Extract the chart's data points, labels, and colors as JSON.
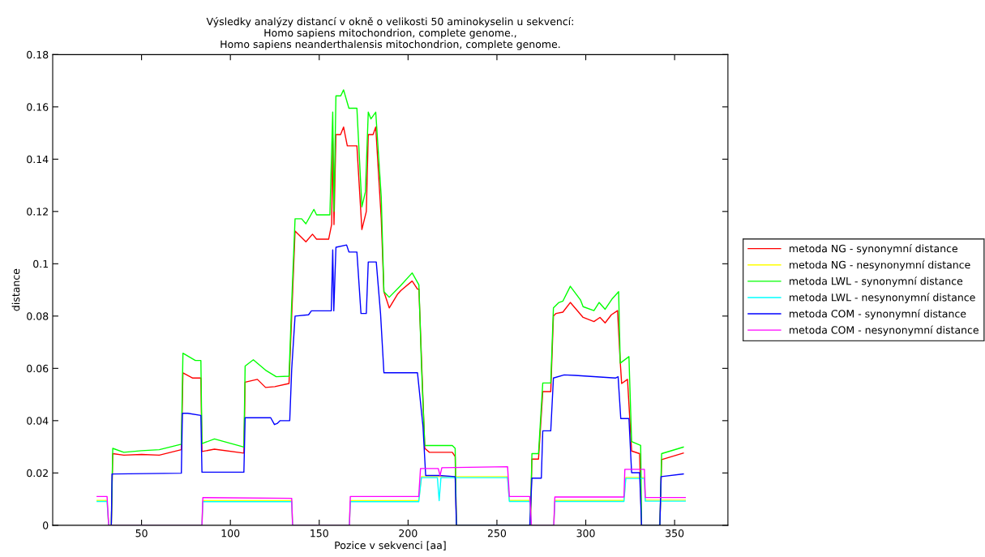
{
  "chart_data": {
    "type": "line",
    "title": "Výsledky analýzy distancí v okně o velikosti 50 aminokyselin u sekvencí:\nHomo sapiens mitochondrion, complete genome.,\nHomo sapiens neanderthalensis mitochondrion, complete genome.",
    "xlabel": "Pozice v sekvenci [aa]",
    "ylabel": "distance",
    "xlim": [
      0,
      380
    ],
    "ylim": [
      0,
      0.18
    ],
    "xticks": [
      50,
      100,
      150,
      200,
      250,
      300,
      350
    ],
    "yticks": [
      0,
      0.02,
      0.04,
      0.06,
      0.08,
      0.1,
      0.12,
      0.14,
      0.16,
      0.18
    ],
    "grid": false,
    "legend": "right",
    "marker": "none",
    "line_style": "solid",
    "series": [
      {
        "name": "metoda NG - synonymní distance",
        "color": "#ff0000",
        "x": [
          33,
          33.8,
          40,
          50,
          60,
          72.4,
          73.3,
          78.8,
          83.4,
          84,
          91,
          107.6,
          108.3,
          115.2,
          119.8,
          125,
          133,
          134.5,
          136.4,
          142.5,
          146.2,
          148.5,
          155.3,
          157,
          157.6,
          158.3,
          159.4,
          162,
          163.7,
          165.8,
          171.2,
          174,
          176.5,
          177.6,
          180.3,
          181.8,
          184.9,
          186.4,
          189.4,
          194,
          196,
          202.3,
          205.3,
          206.1,
          209.4,
          212,
          224.9,
          226.5,
          227.2,
          268.8,
          269.7,
          273.4,
          275.8,
          280.3,
          281.8,
          283.3,
          287.1,
          291.3,
          298.5,
          304.6,
          308,
          310.9,
          314.4,
          317.9,
          319.4,
          320.2,
          323.5,
          325.8,
          330.3,
          331.4,
          341.7,
          342.7,
          354.9
        ],
        "values": [
          0,
          0.0274,
          0.0268,
          0.0271,
          0.0268,
          0.0289,
          0.0583,
          0.0563,
          0.0563,
          0.0282,
          0.0291,
          0.0276,
          0.0547,
          0.0558,
          0.0527,
          0.053,
          0.0542,
          0.08,
          0.1125,
          0.1084,
          0.1113,
          0.1094,
          0.1094,
          0.1151,
          0.1482,
          0.115,
          0.1494,
          0.1494,
          0.1523,
          0.1451,
          0.1451,
          0.1131,
          0.12,
          0.1494,
          0.1494,
          0.1523,
          0.1172,
          0.0893,
          0.0831,
          0.0883,
          0.0898,
          0.0934,
          0.0903,
          0.0903,
          0.0294,
          0.0279,
          0.0279,
          0.0263,
          0,
          0,
          0.0253,
          0.0253,
          0.0511,
          0.0511,
          0.08,
          0.081,
          0.0815,
          0.0852,
          0.0795,
          0.0779,
          0.0795,
          0.0774,
          0.0805,
          0.0821,
          0.0625,
          0.0542,
          0.0558,
          0.0284,
          0.0274,
          0,
          0,
          0.0251,
          0.0276
        ]
      },
      {
        "name": "metoda NG - nesynonymní distance",
        "color": "#ffff00",
        "x": [
          25,
          30.6,
          31.5,
          84,
          84.5,
          134.5,
          135,
          167,
          167.5,
          206,
          207.5,
          256,
          257,
          268.5,
          269.4,
          282,
          282.6,
          321.5,
          322.5,
          333,
          333.5,
          356
        ],
        "values": [
          0.0095,
          0.0095,
          0,
          0,
          0.0094,
          0.0094,
          0,
          0,
          0.0094,
          0.0094,
          0.0186,
          0.0186,
          0.0095,
          0.0095,
          0,
          0,
          0.0095,
          0.0095,
          0.0183,
          0.0183,
          0.0096,
          0.0096
        ]
      },
      {
        "name": "metoda LWL - synonymní distance",
        "color": "#00ff00",
        "x": [
          33,
          33.8,
          40,
          50,
          60,
          72.4,
          73.3,
          80.3,
          83.4,
          84,
          91,
          107.6,
          108.3,
          112.9,
          119.8,
          125.8,
          133,
          134.5,
          136.4,
          140.1,
          142.5,
          147,
          148.5,
          156,
          157.6,
          158.3,
          159.4,
          162.1,
          163.7,
          166.7,
          171.2,
          174,
          176,
          177.6,
          179.1,
          181.8,
          184.9,
          186.4,
          189.4,
          195.5,
          202.3,
          206.1,
          207.6,
          209.4,
          224.9,
          226.5,
          227.2,
          268.8,
          269.7,
          273.4,
          275.8,
          280.3,
          281.8,
          284.9,
          287.1,
          291.3,
          297,
          298.5,
          304.6,
          307.5,
          310.9,
          315,
          318.5,
          319.4,
          324.3,
          325.8,
          330.9,
          331.4,
          341.7,
          342.7,
          354.9
        ],
        "values": [
          0,
          0.0294,
          0.0279,
          0.0285,
          0.0289,
          0.031,
          0.0658,
          0.063,
          0.063,
          0.0312,
          0.033,
          0.0299,
          0.0609,
          0.0633,
          0.0593,
          0.0568,
          0.057,
          0.085,
          0.1172,
          0.1172,
          0.1153,
          0.1208,
          0.1187,
          0.1187,
          0.158,
          0.12,
          0.1642,
          0.1642,
          0.1665,
          0.1595,
          0.1595,
          0.1218,
          0.1275,
          0.158,
          0.1554,
          0.158,
          0.1255,
          0.0893,
          0.0872,
          0.0914,
          0.0965,
          0.0919,
          0.06,
          0.0305,
          0.0305,
          0.0294,
          0,
          0,
          0.0274,
          0.0274,
          0.0544,
          0.0544,
          0.0831,
          0.0852,
          0.0857,
          0.0914,
          0.0862,
          0.0836,
          0.0821,
          0.0852,
          0.0826,
          0.0867,
          0.0893,
          0.062,
          0.0645,
          0.032,
          0.0305,
          0,
          0,
          0.0274,
          0.0299
        ]
      },
      {
        "name": "metoda LWL - nesynonymní distance",
        "color": "#00ffff",
        "x": [
          25,
          30.6,
          31.5,
          84,
          84.5,
          134.5,
          135,
          167,
          167.5,
          206,
          207.5,
          216.5,
          217.5,
          218.5,
          256,
          257,
          268.5,
          269.4,
          282,
          282.6,
          321.5,
          322.5,
          333,
          333.5,
          356
        ],
        "values": [
          0.0091,
          0.0091,
          0,
          0,
          0.009,
          0.009,
          0,
          0,
          0.009,
          0.009,
          0.0182,
          0.0182,
          0.0094,
          0.0182,
          0.0182,
          0.0091,
          0.0091,
          0,
          0,
          0.0091,
          0.0091,
          0.0179,
          0.0179,
          0.0092,
          0.0092
        ]
      },
      {
        "name": "metoda COM - synonymní distance",
        "color": "#0000ff",
        "x": [
          33,
          33.4,
          72.4,
          73,
          76,
          83.4,
          84,
          107.6,
          108.3,
          122.7,
          124.8,
          126.5,
          128,
          133.4,
          134.5,
          136.4,
          144,
          145.6,
          156.8,
          157.6,
          158.2,
          159.4,
          165.4,
          166.7,
          171.2,
          173.5,
          176.5,
          177.6,
          182.1,
          184.5,
          186.4,
          205.3,
          208.4,
          209.9,
          217.5,
          226.5,
          227.2,
          268.5,
          269.7,
          275,
          275.8,
          280.3,
          281.8,
          287.9,
          294,
          316.7,
          318.2,
          319.7,
          324.3,
          325.8,
          330.3,
          331.4,
          341.7,
          342.4,
          354.9
        ],
        "values": [
          0,
          0.0196,
          0.0199,
          0.0428,
          0.0428,
          0.042,
          0.0203,
          0.0203,
          0.0411,
          0.0411,
          0.0385,
          0.039,
          0.04,
          0.04,
          0.0596,
          0.08,
          0.0805,
          0.082,
          0.082,
          0.1053,
          0.082,
          0.1063,
          0.1072,
          0.1045,
          0.1045,
          0.081,
          0.081,
          0.1007,
          0.1007,
          0.081,
          0.0583,
          0.0583,
          0.0377,
          0.019,
          0.019,
          0.0186,
          0,
          0,
          0.018,
          0.018,
          0.0361,
          0.0361,
          0.0563,
          0.0575,
          0.0573,
          0.0563,
          0.0568,
          0.0408,
          0.0408,
          0.0201,
          0.0201,
          0,
          0,
          0.0186,
          0.0196
        ]
      },
      {
        "name": "metoda COM - nesynonymní distance",
        "color": "#ff00ff",
        "x": [
          25,
          30.6,
          31.5,
          84,
          84.5,
          134.5,
          135,
          167,
          167.5,
          206,
          207,
          217,
          218,
          219,
          256,
          257,
          268.5,
          269.4,
          282,
          282.6,
          321.5,
          322,
          333,
          333.5,
          356
        ],
        "values": [
          0.011,
          0.011,
          0,
          0,
          0.0106,
          0.0103,
          0,
          0,
          0.011,
          0.011,
          0.0217,
          0.0217,
          0.019,
          0.022,
          0.0224,
          0.011,
          0.011,
          0,
          0,
          0.0108,
          0.0108,
          0.0214,
          0.0214,
          0.0106,
          0.0106
        ]
      }
    ]
  }
}
